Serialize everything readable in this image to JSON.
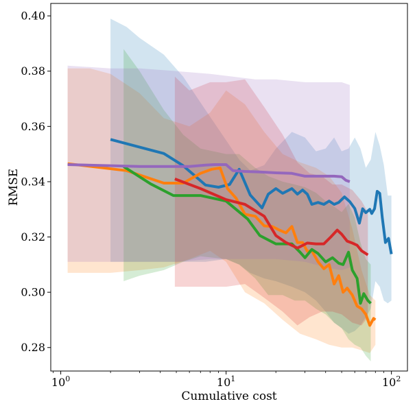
{
  "chart_data": {
    "type": "line",
    "xlabel": "Cumulative cost",
    "ylabel": "RMSE",
    "x_scale": "log",
    "xlim": [
      0.87,
      125
    ],
    "ylim": [
      0.2715,
      0.4045
    ],
    "xticks": [
      1,
      10,
      100
    ],
    "xtick_labels": [
      "10^0",
      "10^1",
      "10^2"
    ],
    "yticks": [
      0.28,
      0.3,
      0.32,
      0.34,
      0.36,
      0.38,
      0.4
    ],
    "ytick_labels": [
      "0.28",
      "0.30",
      "0.32",
      "0.34",
      "0.36",
      "0.38",
      "0.40"
    ],
    "grid": false,
    "legend": false,
    "series": [
      {
        "color": "#1f77b4",
        "x": [
          2.0,
          3.0,
          4.2,
          5.5,
          7.5,
          9.0,
          10.5,
          12.0,
          14.0,
          16.5,
          18.0,
          20.0,
          22.0,
          25.0,
          27.0,
          29.0,
          31.0,
          33.0,
          36.0,
          39.0,
          42.0,
          45.0,
          48.0,
          52.0,
          56.0,
          60.0,
          64.0,
          67.0,
          70.0,
          74.0,
          76.0,
          79.0,
          82.0,
          85.0,
          88.0,
          92.0,
          96.0,
          100.0
        ],
        "y": [
          0.3553,
          0.3525,
          0.3502,
          0.3458,
          0.3388,
          0.338,
          0.339,
          0.3445,
          0.3352,
          0.3305,
          0.3355,
          0.3375,
          0.3358,
          0.3375,
          0.3355,
          0.337,
          0.3355,
          0.3318,
          0.3325,
          0.3318,
          0.333,
          0.3318,
          0.3325,
          0.3345,
          0.3328,
          0.3303,
          0.325,
          0.3302,
          0.3288,
          0.33,
          0.3285,
          0.3302,
          0.3365,
          0.3358,
          0.327,
          0.318,
          0.3195,
          0.3138
        ]
      },
      {
        "color": "#ff7f0e",
        "x": [
          1.1,
          2.5,
          4.2,
          5.5,
          7.0,
          8.2,
          9.2,
          10.2,
          11.5,
          13.0,
          15.0,
          17.0,
          19.0,
          21.0,
          23.0,
          25.0,
          27.0,
          29.0,
          31.0,
          33.0,
          36.0,
          39.0,
          42.0,
          45.0,
          48.0,
          51.0,
          54.0,
          58.0,
          62.0,
          66.0,
          70.0,
          74.0,
          78.0,
          80.0
        ],
        "y": [
          0.3465,
          0.344,
          0.3395,
          0.3395,
          0.343,
          0.3445,
          0.345,
          0.3375,
          0.334,
          0.3282,
          0.3275,
          0.324,
          0.3238,
          0.3225,
          0.3215,
          0.3238,
          0.318,
          0.318,
          0.3148,
          0.315,
          0.311,
          0.3085,
          0.31,
          0.303,
          0.306,
          0.3,
          0.3015,
          0.299,
          0.295,
          0.294,
          0.292,
          0.288,
          0.2905,
          0.29
        ]
      },
      {
        "color": "#2ca02c",
        "x": [
          2.4,
          3.5,
          4.8,
          7.0,
          10.0,
          13.5,
          16.0,
          20.0,
          25.0,
          28.0,
          30.0,
          33.0,
          36.0,
          40.0,
          44.0,
          48.0,
          51.0,
          55.0,
          58.0,
          62.0,
          65.0,
          68.0,
          72.0,
          75.0
        ],
        "y": [
          0.3455,
          0.3392,
          0.335,
          0.335,
          0.333,
          0.3265,
          0.3205,
          0.3175,
          0.3175,
          0.3145,
          0.3125,
          0.3155,
          0.314,
          0.311,
          0.3125,
          0.3105,
          0.31,
          0.3145,
          0.308,
          0.305,
          0.296,
          0.2995,
          0.297,
          0.296
        ]
      },
      {
        "color": "#d62728",
        "x": [
          4.9,
          7.0,
          10.0,
          13.0,
          17.0,
          20.0,
          23.0,
          27.0,
          31.0,
          35.0,
          39.0,
          43.0,
          47.0,
          50.0,
          54.0,
          58.0,
          62.0,
          66.0,
          70.0,
          72.0
        ],
        "y": [
          0.341,
          0.3375,
          0.3335,
          0.3318,
          0.3275,
          0.3205,
          0.318,
          0.316,
          0.3178,
          0.3175,
          0.3175,
          0.32,
          0.3225,
          0.321,
          0.3185,
          0.3178,
          0.317,
          0.315,
          0.314,
          0.3135
        ]
      },
      {
        "color": "#9467bd",
        "x": [
          1.1,
          2.0,
          3.0,
          4.2,
          6.0,
          7.5,
          8.5,
          10.0,
          11.0,
          13.0,
          16.0,
          20.0,
          25.0,
          30.0,
          35.0,
          40.0,
          45.0,
          50.0,
          53.0,
          56.0
        ],
        "y": [
          0.3462,
          0.3458,
          0.3455,
          0.3455,
          0.3455,
          0.346,
          0.3462,
          0.3462,
          0.344,
          0.3437,
          0.3435,
          0.3432,
          0.343,
          0.342,
          0.342,
          0.342,
          0.342,
          0.3418,
          0.3405,
          0.34
        ]
      }
    ],
    "bands": [
      {
        "color": "#1f77b4",
        "x": [
          2.0,
          2.5,
          3.0,
          4.2,
          5.5,
          7.5,
          10.0,
          12.0,
          14.0,
          17.0,
          20.0,
          25.0,
          30.0,
          35.0,
          40.0,
          45.0,
          50.0,
          55.0,
          60.0,
          65.0,
          70.0,
          75.0,
          80.0,
          85.0,
          90.0,
          95.0,
          100.0
        ],
        "upper": [
          0.399,
          0.396,
          0.392,
          0.386,
          0.378,
          0.366,
          0.355,
          0.348,
          0.344,
          0.346,
          0.352,
          0.358,
          0.356,
          0.351,
          0.352,
          0.356,
          0.351,
          0.352,
          0.356,
          0.352,
          0.345,
          0.348,
          0.358,
          0.353,
          0.346,
          0.335,
          0.335
        ],
        "lower": [
          0.311,
          0.311,
          0.311,
          0.311,
          0.311,
          0.311,
          0.312,
          0.31,
          0.307,
          0.305,
          0.304,
          0.302,
          0.3,
          0.297,
          0.293,
          0.289,
          0.287,
          0.285,
          0.286,
          0.288,
          0.291,
          0.294,
          0.304,
          0.302,
          0.297,
          0.296,
          0.297
        ]
      },
      {
        "color": "#ff7f0e",
        "x": [
          1.1,
          1.5,
          2.0,
          3.0,
          4.2,
          6.0,
          8.0,
          10.0,
          13.0,
          17.0,
          22.0,
          28.0,
          35.0,
          42.0,
          50.0,
          58.0,
          66.0,
          74.0,
          80.0
        ],
        "upper": [
          0.381,
          0.381,
          0.379,
          0.372,
          0.363,
          0.36,
          0.365,
          0.373,
          0.368,
          0.358,
          0.35,
          0.347,
          0.345,
          0.342,
          0.336,
          0.323,
          0.308,
          0.299,
          0.297
        ],
        "lower": [
          0.307,
          0.307,
          0.307,
          0.308,
          0.309,
          0.312,
          0.315,
          0.311,
          0.3,
          0.296,
          0.29,
          0.285,
          0.283,
          0.281,
          0.28,
          0.28,
          0.279,
          0.278,
          0.281
        ]
      },
      {
        "color": "#2ca02c",
        "x": [
          2.4,
          3.0,
          4.2,
          5.5,
          7.0,
          10.0,
          12.0,
          15.0,
          18.0,
          22.0,
          26.0,
          30.0,
          35.0,
          40.0,
          45.0,
          50.0,
          55.0,
          60.0,
          65.0,
          70.0,
          75.0
        ],
        "upper": [
          0.388,
          0.38,
          0.366,
          0.357,
          0.352,
          0.35,
          0.35,
          0.345,
          0.342,
          0.34,
          0.339,
          0.338,
          0.336,
          0.333,
          0.331,
          0.329,
          0.332,
          0.327,
          0.318,
          0.312,
          0.31
        ],
        "lower": [
          0.304,
          0.306,
          0.308,
          0.311,
          0.313,
          0.312,
          0.31,
          0.305,
          0.299,
          0.299,
          0.297,
          0.297,
          0.294,
          0.292,
          0.289,
          0.287,
          0.283,
          0.281,
          0.28,
          0.277,
          0.275
        ]
      },
      {
        "color": "#d62728",
        "x": [
          4.9,
          6.0,
          8.0,
          10.0,
          13.0,
          17.0,
          22.0,
          27.0,
          32.0,
          38.0,
          44.0,
          50.0,
          58.0,
          66.0,
          72.0
        ],
        "upper": [
          0.378,
          0.373,
          0.376,
          0.376,
          0.377,
          0.367,
          0.357,
          0.347,
          0.343,
          0.342,
          0.339,
          0.339,
          0.337,
          0.333,
          0.329
        ],
        "lower": [
          0.302,
          0.302,
          0.302,
          0.302,
          0.303,
          0.298,
          0.293,
          0.288,
          0.291,
          0.293,
          0.293,
          0.292,
          0.289,
          0.288,
          0.291
        ]
      },
      {
        "color": "#9467bd",
        "x": [
          1.1,
          2.0,
          3.0,
          5.0,
          8.0,
          11.0,
          15.0,
          20.0,
          30.0,
          40.0,
          50.0,
          56.0
        ],
        "upper": [
          0.382,
          0.381,
          0.381,
          0.38,
          0.379,
          0.378,
          0.377,
          0.377,
          0.376,
          0.376,
          0.376,
          0.375
        ],
        "lower": [
          0.311,
          0.311,
          0.311,
          0.311,
          0.312,
          0.312,
          0.312,
          0.312,
          0.311,
          0.309,
          0.308,
          0.309
        ]
      }
    ]
  }
}
